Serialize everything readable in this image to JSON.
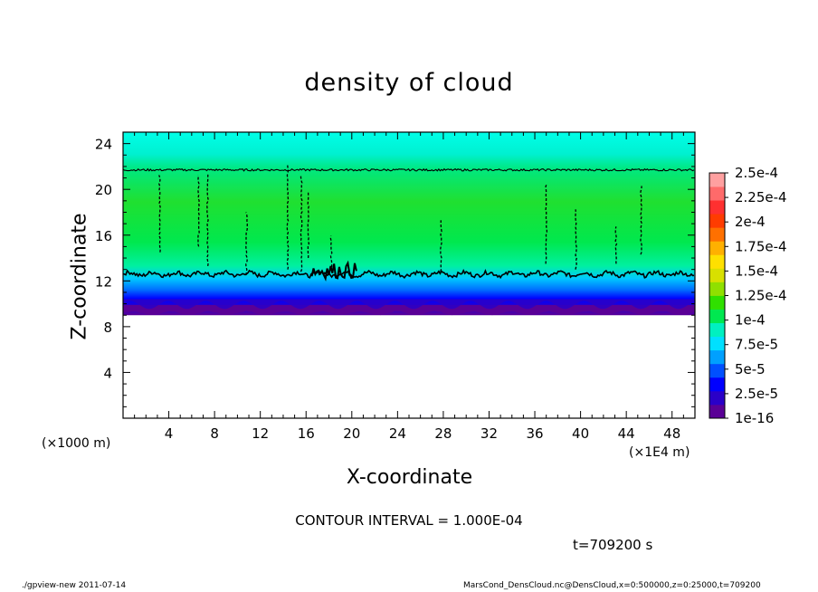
{
  "chart_data": {
    "type": "heatmap",
    "title": "density of cloud",
    "xlabel": "X-coordinate",
    "ylabel": "Z-coordinate",
    "x_unit_label": "(×1000 m)",
    "x_scale_label": "(×1E4 m)",
    "xlim": [
      0,
      50
    ],
    "ylim": [
      0,
      25
    ],
    "xticks": [
      4,
      8,
      12,
      16,
      20,
      24,
      28,
      32,
      36,
      40,
      44,
      48
    ],
    "yticks": [
      4,
      8,
      12,
      16,
      20,
      24
    ],
    "colorbar": {
      "labels": [
        "1e-16",
        "2.5e-5",
        "5e-5",
        "7.5e-5",
        "1e-4",
        "1.25e-4",
        "1.5e-4",
        "1.75e-4",
        "2e-4",
        "2.25e-4",
        "2.5e-4"
      ],
      "colors": [
        "#5a0096",
        "#2a00c8",
        "#0000ff",
        "#0050ff",
        "#00a0ff",
        "#00e0ff",
        "#00f0c0",
        "#00e850",
        "#30e000",
        "#90e000",
        "#d8e000",
        "#ffe000",
        "#ffb000",
        "#ff7000",
        "#ff3c00",
        "#ff3030",
        "#ff6a6a",
        "#ffa0a0"
      ]
    },
    "bands": [
      {
        "z_from": 9.0,
        "z_to": 9.8,
        "value": "1e-16"
      },
      {
        "z_from": 9.8,
        "z_to": 10.6,
        "value": "2.5e-5"
      },
      {
        "z_from": 10.6,
        "z_to": 12.0,
        "value": "5e-5"
      },
      {
        "z_from": 12.0,
        "z_to": 21.5,
        "value": "1e-4"
      },
      {
        "z_from": 21.5,
        "z_to": 25.0,
        "value": "7.5e-5"
      }
    ],
    "contour_lines_z": [
      12.6,
      21.7
    ]
  },
  "contour_interval": "CONTOUR INTERVAL = 1.000E-04",
  "time_label": "t=709200 s",
  "footer_left": "./gpview-new  2011-07-14",
  "footer_right": "MarsCond_DensCloud.nc@DensCloud,x=0:500000,z=0:25000,t=709200"
}
